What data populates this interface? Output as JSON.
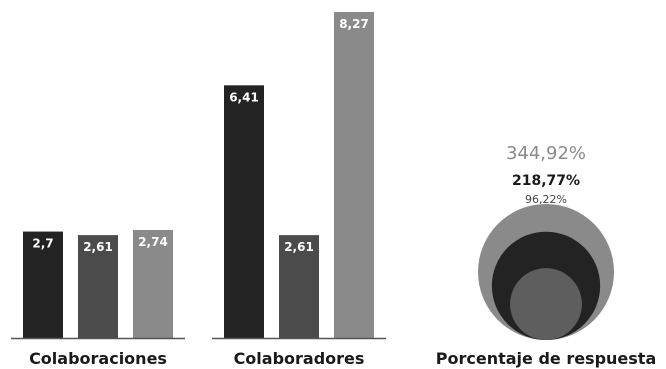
{
  "chart_data": [
    {
      "type": "bar",
      "title": "",
      "categories": [
        "Colaboraciones",
        "Colaboradores"
      ],
      "series": [
        {
          "values": [
            2.7,
            6.41
          ],
          "labels": [
            "2,7",
            "6,41"
          ]
        },
        {
          "values": [
            2.61,
            2.61
          ],
          "labels": [
            "2,61",
            "2,61"
          ]
        },
        {
          "values": [
            2.74,
            8.27
          ],
          "labels": [
            "2,74",
            "8,27"
          ]
        }
      ],
      "ylim": [
        0,
        8.27
      ],
      "grid": false,
      "legend": "none"
    },
    {
      "type": "bubble",
      "title": "Porcentaje de respuesta",
      "values": [
        344.92,
        218.77,
        96.22
      ],
      "labels": [
        "344,92%",
        "218,77%",
        "96,22%"
      ]
    }
  ],
  "colors": {
    "series": [
      "#232323",
      "#4b4b4b",
      "#8a8a8a"
    ],
    "axis": "#555555",
    "bubble_outer": "#8a8a8a",
    "bubble_mid": "#232323",
    "bubble_inner": "#5e5e5e",
    "label_big": "#8a8a8a",
    "label_mid": "#1a1a1a",
    "label_small": "#444444"
  }
}
